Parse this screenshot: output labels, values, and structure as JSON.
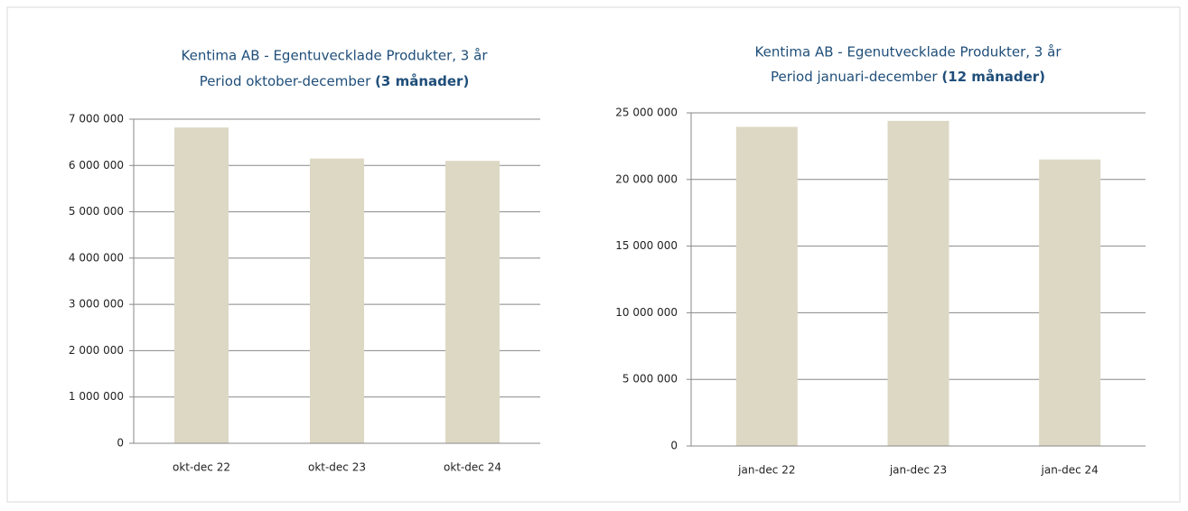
{
  "chart_data": [
    {
      "type": "bar",
      "title": "Kentima AB - Egentuvecklade Produkter, 3 år",
      "subtitle": "Period oktober-december",
      "subtitle_bold": "(3 månader)",
      "categories": [
        "okt-dec 22",
        "okt-dec 23",
        "okt-dec 24"
      ],
      "values": [
        6820000,
        6150000,
        6100000
      ],
      "color": "#ddd8c4",
      "ylim": [
        0,
        7000000
      ],
      "yticks": [
        0,
        {
          "value": 1000000,
          "label": "1 000 000"
        },
        {
          "value": 2000000,
          "label": "2 000 000"
        },
        {
          "value": 3000000,
          "label": "3 000 000"
        },
        {
          "value": 4000000,
          "label": "4 000 000"
        },
        {
          "value": 5000000,
          "label": "5 000 000"
        },
        {
          "value": 6000000,
          "label": "6 000 000"
        },
        {
          "value": 7000000,
          "label": "7 000 000"
        }
      ],
      "grid": true
    },
    {
      "type": "bar",
      "title": "Kentima AB - Egenutvecklade Produkter, 3 år",
      "subtitle": "Period januari-december",
      "subtitle_bold": "(12 månader)",
      "categories": [
        "jan-dec 22",
        "jan-dec 23",
        "jan-dec 24"
      ],
      "values": [
        23950000,
        24400000,
        21500000
      ],
      "color": "#ddd8c4",
      "ylim": [
        0,
        25000000
      ],
      "yticks": [
        0,
        {
          "value": 5000000,
          "label": "5 000 000"
        },
        {
          "value": 10000000,
          "label": "10 000 000"
        },
        {
          "value": 15000000,
          "label": "15 000 000"
        },
        {
          "value": 20000000,
          "label": "20 000 000"
        },
        {
          "value": 25000000,
          "label": "25 000 000"
        }
      ],
      "grid": true
    }
  ]
}
